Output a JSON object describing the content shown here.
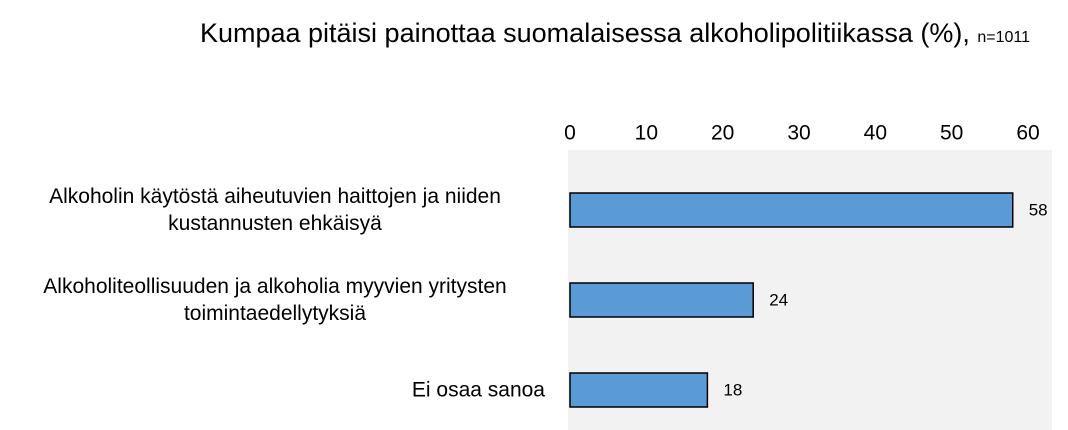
{
  "chart_data": {
    "type": "bar",
    "orientation": "horizontal",
    "title": "Kumpaa pitäisi painottaa suomalaisessa alkoholipolitiikassa (%),",
    "subtitle": "n=1011",
    "categories": [
      "Alkoholin käytöstä aiheutuvien haittojen ja niiden kustannusten ehkäisyä",
      "Alkoholiteollisuuden ja alkoholia myyvien yritysten toimintaedellytyksiä",
      "Ei osaa sanoa"
    ],
    "values": [
      58,
      24,
      18
    ],
    "color": "#5b9bd5",
    "xlim": [
      0,
      60
    ],
    "xticks": [
      0,
      10,
      20,
      30,
      40,
      50,
      60
    ],
    "grid": false
  }
}
